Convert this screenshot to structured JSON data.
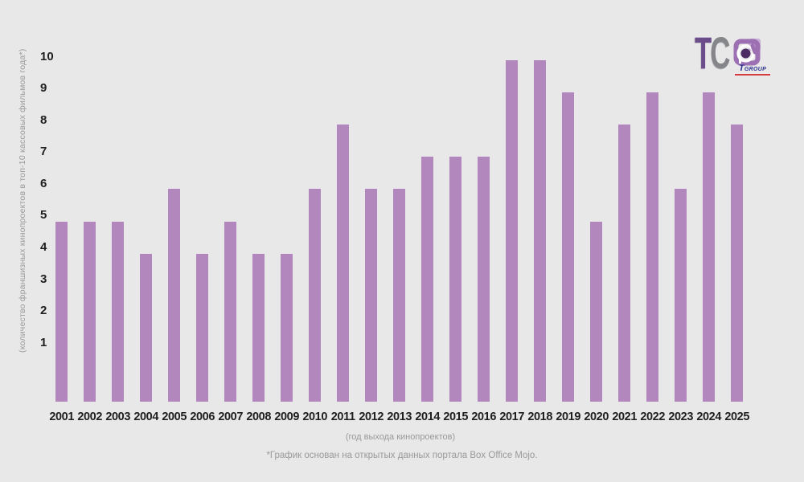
{
  "page": {
    "background": "#e9e8e9",
    "ink_color": "#1f1f1f",
    "muted_color": "#9a9a9a"
  },
  "logo": {
    "t_text": "T",
    "c_text": "C",
    "sub_text_big": "T",
    "sub_text_small": "GROUP",
    "colors": {
      "t": "#6b4d8c",
      "c": "#85868a",
      "mark_main": "#9c70b2",
      "mark_light": "#c9afd7",
      "mark_dark": "#4b2d63",
      "sub": "#2e3192",
      "accent_red": "#d6393f"
    }
  },
  "chart_data": {
    "type": "bar",
    "title": "",
    "categories": [
      "2001",
      "2002",
      "2003",
      "2004",
      "2005",
      "2006",
      "2007",
      "2008",
      "2009",
      "2010",
      "2011",
      "2012",
      "2013",
      "2014",
      "2015",
      "2016",
      "2017",
      "2018",
      "2019",
      "2020",
      "2021",
      "2022",
      "2023",
      "2024",
      "2025"
    ],
    "values": [
      5,
      5,
      5,
      4,
      6,
      4,
      5,
      4,
      4,
      6,
      8,
      6,
      6,
      7,
      7,
      7,
      10,
      10,
      9,
      5,
      8,
      9,
      6,
      9,
      8
    ],
    "ylabel": "(количество франшизных кинопроектов в топ-10 кассовых фильмов года*)",
    "xlabel": "(год выхода кинопроектов)",
    "footnote": "*График основан на открытых данных портала Box Office Mojo.",
    "yticks": [
      1,
      2,
      3,
      4,
      5,
      6,
      7,
      8,
      9,
      10
    ],
    "ylim": [
      0,
      10.5
    ],
    "grid": false,
    "legend": null,
    "bar_color": "#b287bd"
  }
}
